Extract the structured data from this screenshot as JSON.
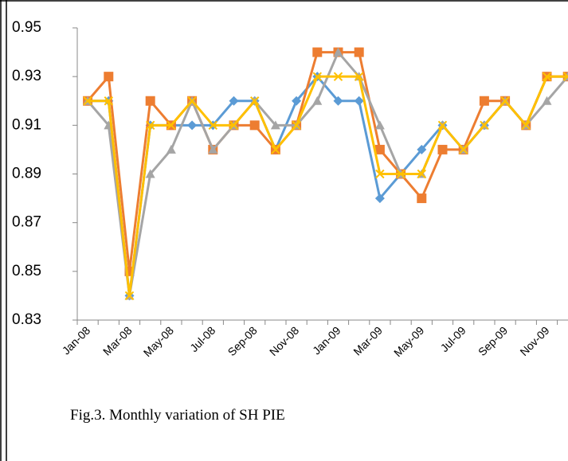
{
  "chart_data": {
    "type": "line",
    "caption": "Fig.3. Monthly variation of SH PIE",
    "categories": [
      "Jan-08",
      null,
      "Mar-08",
      null,
      "May-08",
      null,
      "Jul-08",
      null,
      "Sep-08",
      null,
      "Nov-08",
      null,
      "Jan-09",
      null,
      "Mar-09",
      null,
      "May-09",
      null,
      "Jul-09",
      null,
      "Sep-09",
      null,
      "Nov-09",
      null
    ],
    "series": [
      {
        "color": "#5b9bd5",
        "marker": "diamond",
        "values": [
          0.92,
          0.92,
          0.84,
          0.91,
          0.91,
          0.91,
          0.91,
          0.92,
          0.92,
          0.9,
          0.92,
          0.93,
          0.92,
          0.92,
          0.88,
          0.89,
          0.9,
          0.91,
          0.9,
          0.91,
          0.92,
          0.91,
          0.93,
          0.93
        ]
      },
      {
        "color": "#ed7d31",
        "marker": "square",
        "values": [
          0.92,
          0.93,
          0.85,
          0.92,
          0.91,
          0.92,
          0.9,
          0.91,
          0.91,
          0.9,
          0.91,
          0.94,
          0.94,
          0.94,
          0.9,
          0.89,
          0.88,
          0.9,
          0.9,
          0.92,
          0.92,
          0.91,
          0.93,
          0.93
        ]
      },
      {
        "color": "#a5a5a5",
        "marker": "triangle",
        "values": [
          0.92,
          0.91,
          0.84,
          0.89,
          0.9,
          0.92,
          0.9,
          0.91,
          0.92,
          0.91,
          0.91,
          0.92,
          0.94,
          0.93,
          0.91,
          0.89,
          0.89,
          0.91,
          0.9,
          0.91,
          0.92,
          0.91,
          0.92,
          0.93
        ]
      },
      {
        "color": "#ffc000",
        "marker": "x",
        "values": [
          0.92,
          0.92,
          0.84,
          0.91,
          0.91,
          0.92,
          0.91,
          0.91,
          0.92,
          0.9,
          0.91,
          0.93,
          0.93,
          0.93,
          0.89,
          0.89,
          0.89,
          0.91,
          0.9,
          0.91,
          0.92,
          0.91,
          0.93,
          0.93
        ]
      }
    ],
    "ylim": [
      0.83,
      0.95
    ],
    "yticks": [
      0.83,
      0.85,
      0.87,
      0.89,
      0.91,
      0.93,
      0.95
    ],
    "grid": false
  }
}
